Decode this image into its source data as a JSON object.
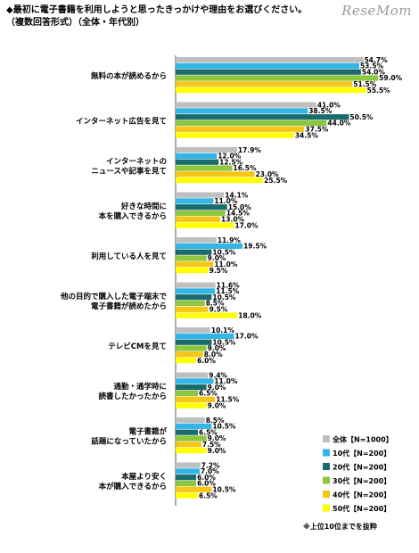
{
  "title_line1": "◆最初に電子書籍を利用しようと思ったきっかけや理由をお選びください。",
  "title_line2": "（複数回答形式）（全体・年代別）",
  "watermark": "ReseMom",
  "footnote": "※上位10位までを抜粋",
  "colors": [
    "#bfbfbf",
    "#33b5e5",
    "#1a6b6b",
    "#8dc63f",
    "#f5c518",
    "#ffff00"
  ],
  "chart_data": {
    "type": "bar",
    "orientation": "horizontal",
    "categories": [
      [
        "無料の本が読めるから"
      ],
      [
        "インターネット広告を見て"
      ],
      [
        "インターネットの",
        "ニュースや記事を見て"
      ],
      [
        "好きな時間に",
        "本を購入できるから"
      ],
      [
        "利用している人を見て"
      ],
      [
        "他の目的で購入した電子端末で",
        "電子書籍が読めたから"
      ],
      [
        "テレビCMを見て"
      ],
      [
        "通勤・通学時に",
        "読書したかったから"
      ],
      [
        "電子書籍が",
        "話題になっていたから"
      ],
      [
        "本屋より安く",
        "本が購入できるから"
      ]
    ],
    "series": [
      {
        "name": "全体【N=1000】",
        "values": [
          54.7,
          41.0,
          17.9,
          14.1,
          11.9,
          11.6,
          10.1,
          9.4,
          8.5,
          7.2
        ]
      },
      {
        "name": "10代【N=200】",
        "values": [
          53.5,
          38.5,
          12.0,
          11.0,
          19.5,
          11.5,
          17.0,
          11.0,
          10.5,
          7.0
        ]
      },
      {
        "name": "20代【N=200】",
        "values": [
          54.0,
          50.5,
          12.5,
          15.0,
          10.5,
          10.5,
          10.5,
          9.0,
          6.5,
          6.0
        ]
      },
      {
        "name": "30代【N=200】",
        "values": [
          59.0,
          44.0,
          16.5,
          14.5,
          9.0,
          8.5,
          9.0,
          6.5,
          9.0,
          6.0
        ]
      },
      {
        "name": "40代【N=200】",
        "values": [
          51.5,
          37.5,
          23.0,
          13.0,
          11.0,
          9.5,
          8.0,
          11.5,
          7.5,
          10.5
        ]
      },
      {
        "name": "50代【N=200】",
        "values": [
          55.5,
          34.5,
          25.5,
          17.0,
          9.5,
          18.0,
          6.0,
          9.0,
          9.0,
          6.5
        ]
      }
    ],
    "xlim": [
      0,
      60
    ]
  }
}
